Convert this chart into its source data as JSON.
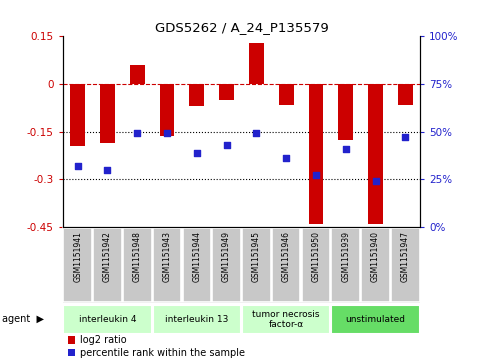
{
  "title": "GDS5262 / A_24_P135579",
  "samples": [
    "GSM1151941",
    "GSM1151942",
    "GSM1151948",
    "GSM1151943",
    "GSM1151944",
    "GSM1151949",
    "GSM1151945",
    "GSM1151946",
    "GSM1151950",
    "GSM1151939",
    "GSM1151940",
    "GSM1151947"
  ],
  "log2_ratio": [
    -0.195,
    -0.185,
    0.06,
    -0.165,
    -0.07,
    -0.05,
    0.13,
    -0.065,
    -0.44,
    -0.175,
    -0.44,
    -0.065
  ],
  "percentile": [
    32,
    30,
    49,
    49,
    39,
    43,
    49,
    36,
    27,
    41,
    24,
    47
  ],
  "agents": [
    {
      "label": "interleukin 4",
      "start": 0,
      "end": 3,
      "color": "#ccffcc"
    },
    {
      "label": "interleukin 13",
      "start": 3,
      "end": 6,
      "color": "#ccffcc"
    },
    {
      "label": "tumor necrosis\nfactor-α",
      "start": 6,
      "end": 9,
      "color": "#ccffcc"
    },
    {
      "label": "unstimulated",
      "start": 9,
      "end": 12,
      "color": "#66dd66"
    }
  ],
  "ylim": [
    -0.45,
    0.15
  ],
  "yticks_left": [
    0.15,
    0.0,
    -0.15,
    -0.3,
    -0.45
  ],
  "ytick_labels_left": [
    "0.15",
    "0",
    "-0.15",
    "-0.3",
    "-0.45"
  ],
  "yticks_right_pct": [
    100,
    75,
    50,
    25,
    0
  ],
  "hlines": [
    -0.15,
    -0.3
  ],
  "bar_color": "#cc0000",
  "dot_color": "#2222cc",
  "bg_color": "#ffffff",
  "label_box_color": "#c8c8c8",
  "legend_items": [
    "log2 ratio",
    "percentile rank within the sample"
  ]
}
